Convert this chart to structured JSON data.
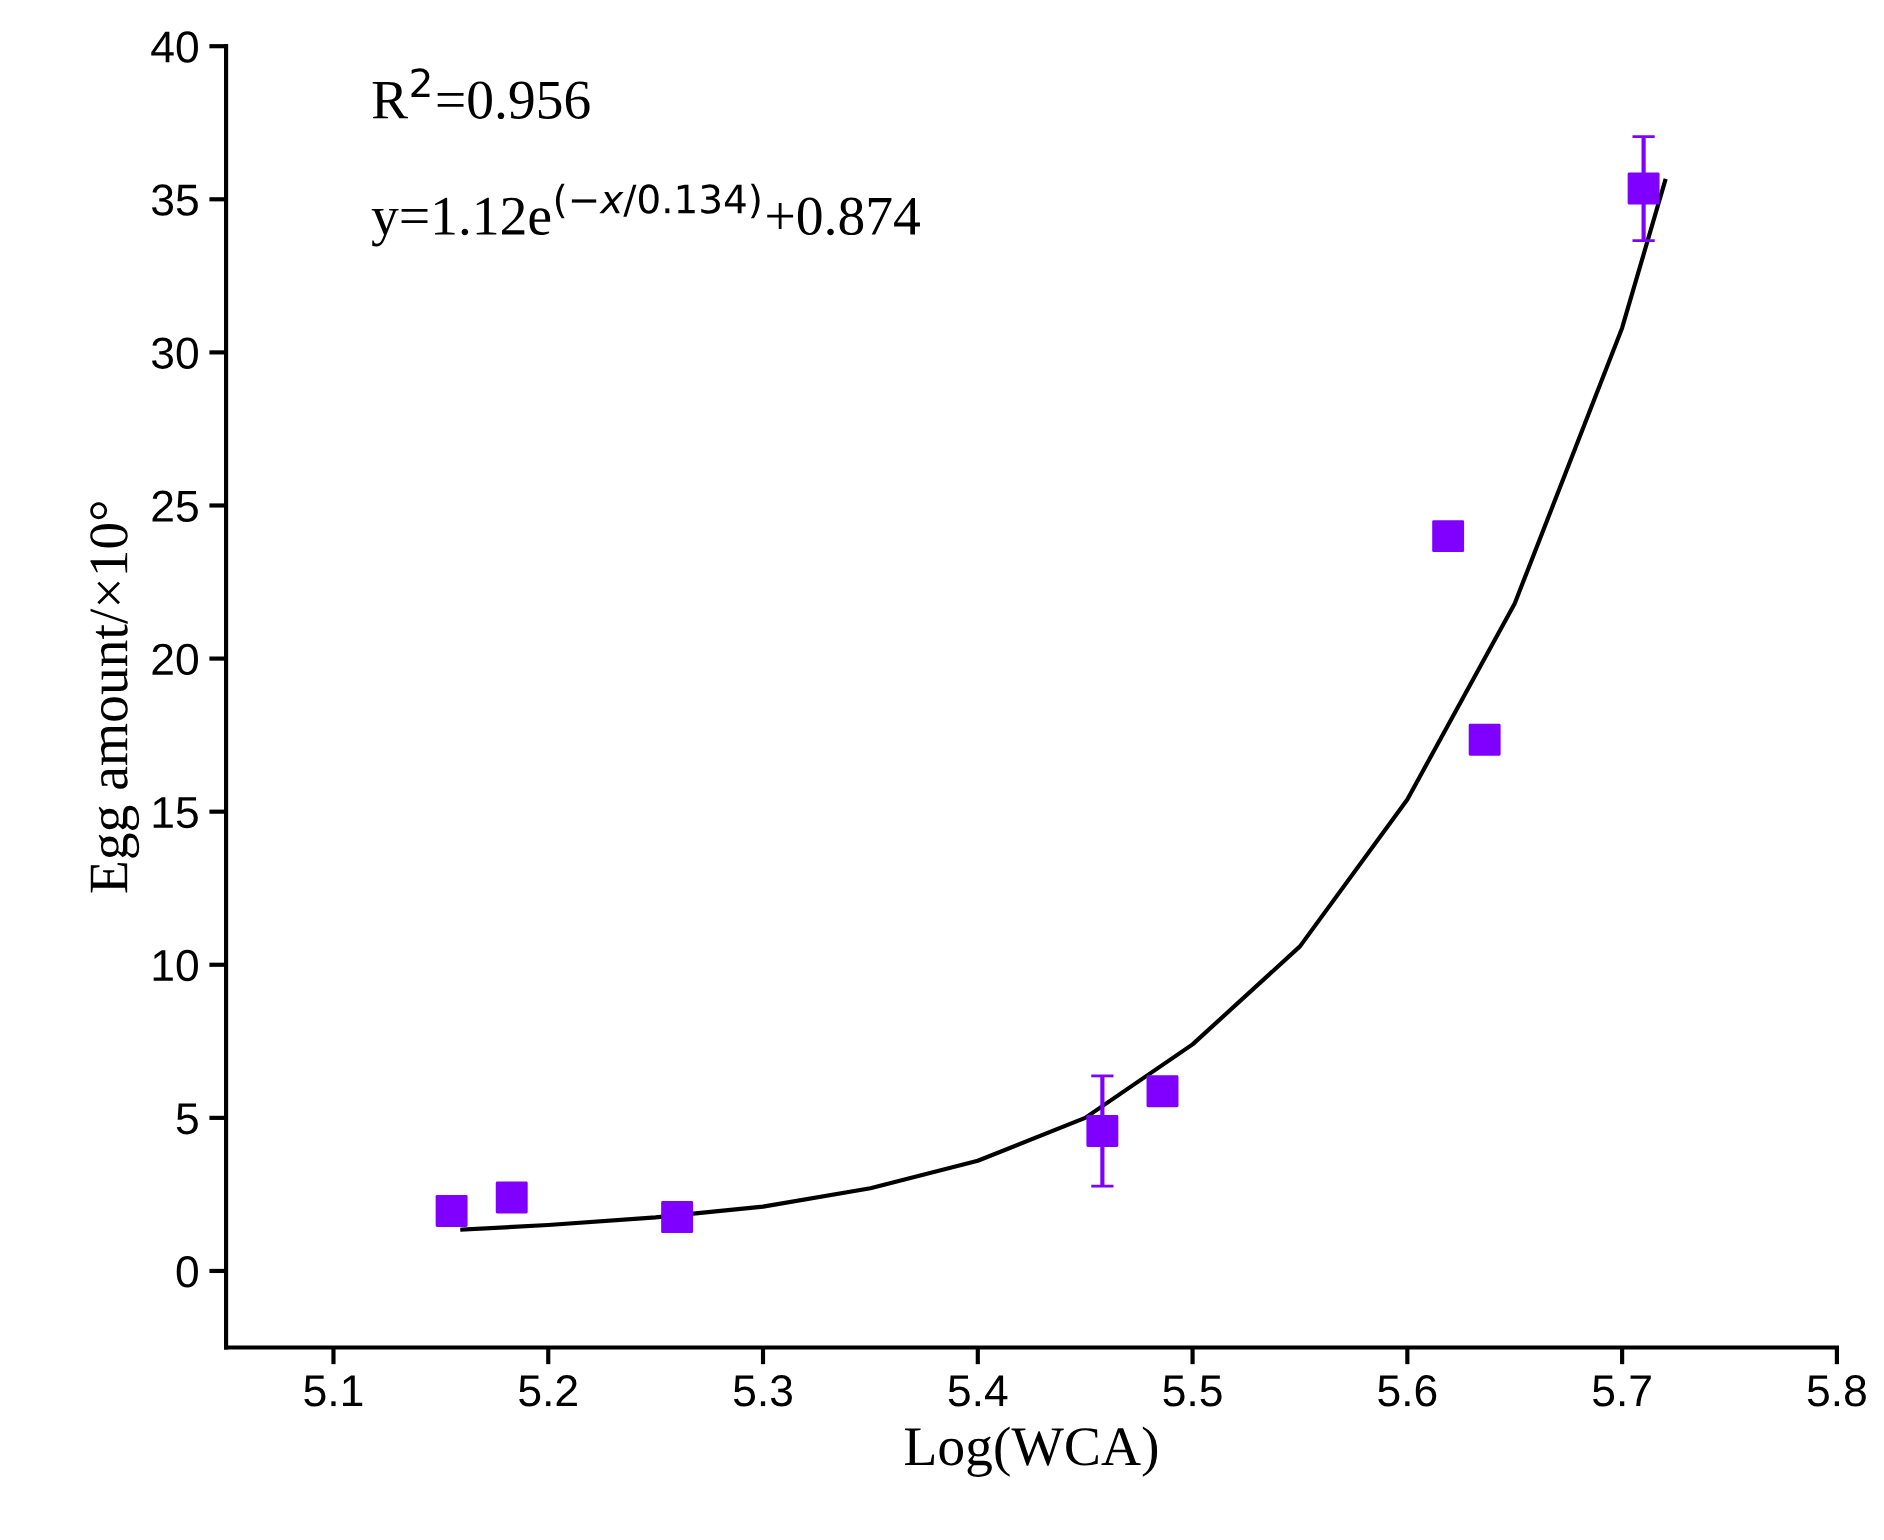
{
  "chart_data": {
    "type": "scatter",
    "xlabel": "Log(WCA)",
    "ylabel": "Egg amount/×10°",
    "annotations": [
      "R$^{2}$=0.956",
      "y=1.12e$^{(−x/0.134)}$+0.874"
    ],
    "series": [
      {
        "color": "#7f00ff",
        "marker": "square",
        "x": [
          5.155,
          5.183,
          5.26,
          5.458,
          5.486,
          5.619,
          5.636,
          5.71
        ],
        "values": [
          1.96,
          2.4,
          1.76,
          4.57,
          5.87,
          24.0,
          17.35,
          35.35
        ],
        "errors": [
          null,
          null,
          null,
          1.8,
          null,
          null,
          null,
          1.7
        ]
      },
      {
        "type": "line",
        "color": "#000000",
        "marker": "none",
        "line_style": "solid",
        "x": [
          5.16,
          5.2,
          5.25,
          5.3,
          5.35,
          5.4,
          5.45,
          5.5,
          5.55,
          5.6,
          5.65,
          5.7,
          5.72
        ],
        "values": [
          1.35,
          1.5,
          1.75,
          2.1,
          2.7,
          3.6,
          5.0,
          7.4,
          10.6,
          15.4,
          21.8,
          30.8,
          35.6
        ]
      }
    ],
    "xlim": [
      5.05,
      5.8
    ],
    "xticks": [
      5.1,
      5.2,
      5.3,
      5.4,
      5.5,
      5.6,
      5.7,
      5.8
    ],
    "ylim": [
      -2.5,
      40
    ],
    "yticks": [
      0,
      5,
      10,
      15,
      20,
      25,
      30,
      35,
      40
    ],
    "grid": false,
    "legend": false
  }
}
